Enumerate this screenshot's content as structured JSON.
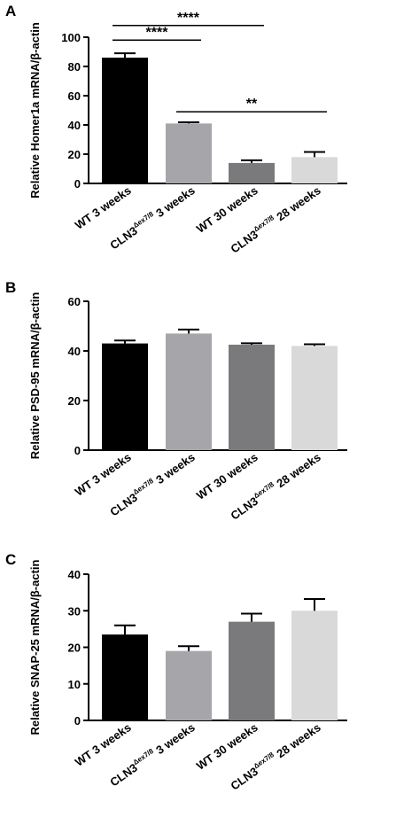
{
  "chart_data": [
    {
      "type": "bar",
      "panel": "A",
      "ylabel": "Relative Homer1a mRNA/β-actin",
      "ylim": [
        0,
        100
      ],
      "yticks": [
        0,
        20,
        40,
        60,
        80,
        100
      ],
      "categories": [
        {
          "main": "WT 3 weeks"
        },
        {
          "main": "CLN3",
          "sup": "Δex7/8",
          "tail": " 3 weeks"
        },
        {
          "main": "WT 30 weeks"
        },
        {
          "main": "CLN3",
          "sup": "Δex7/8",
          "tail": " 28 weeks"
        }
      ],
      "values": [
        86,
        41,
        14,
        18
      ],
      "errors": [
        3,
        0.8,
        1.8,
        3.5
      ],
      "colors": [
        "#000000",
        "#a6a6aa",
        "#7a7a7d",
        "#d9d9d9"
      ],
      "significance": [
        {
          "from": 0,
          "to": 2,
          "label": "****",
          "y": 108
        },
        {
          "from": 0,
          "to": 1,
          "label": "****",
          "y": 98
        },
        {
          "from": 1,
          "to": 3,
          "label": "**",
          "y": 49
        }
      ]
    },
    {
      "type": "bar",
      "panel": "B",
      "ylabel": "Relative PSD-95 mRNA/β-actin",
      "ylim": [
        0,
        60
      ],
      "yticks": [
        0,
        20,
        40,
        60
      ],
      "categories": [
        {
          "main": "WT 3 weeks"
        },
        {
          "main": "CLN3",
          "sup": "Δex7/8",
          "tail": " 3 weeks"
        },
        {
          "main": "WT 30 weeks"
        },
        {
          "main": "CLN3",
          "sup": "Δex7/8",
          "tail": " 28 weeks"
        }
      ],
      "values": [
        43,
        47,
        42.5,
        42
      ],
      "errors": [
        1.2,
        1.6,
        0.6,
        0.7
      ],
      "colors": [
        "#000000",
        "#a6a6aa",
        "#7a7a7d",
        "#d9d9d9"
      ],
      "significance": []
    },
    {
      "type": "bar",
      "panel": "C",
      "ylabel": "Relative SNAP-25 mRNA/β-actin",
      "ylim": [
        0,
        40
      ],
      "yticks": [
        0,
        10,
        20,
        30,
        40
      ],
      "categories": [
        {
          "main": "WT 3 weeks"
        },
        {
          "main": "CLN3",
          "sup": "Δex7/8",
          "tail": " 3 weeks"
        },
        {
          "main": "WT 30 weeks"
        },
        {
          "main": "CLN3",
          "sup": "Δex7/8",
          "tail": " 28 weeks"
        }
      ],
      "values": [
        23.5,
        19,
        27,
        30
      ],
      "errors": [
        2.5,
        1.3,
        2.2,
        3.2
      ],
      "colors": [
        "#000000",
        "#a6a6aa",
        "#7a7a7d",
        "#d9d9d9"
      ],
      "significance": []
    }
  ]
}
